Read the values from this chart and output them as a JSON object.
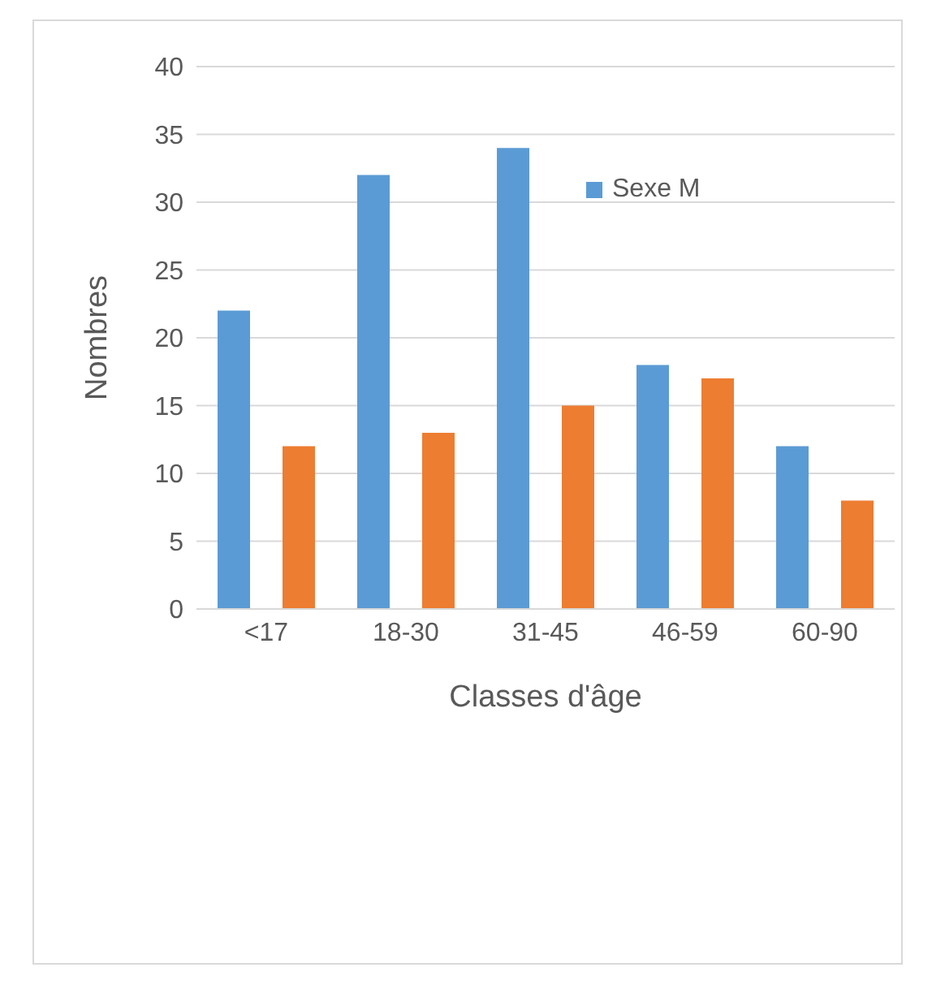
{
  "chart_data": {
    "type": "bar",
    "xlabel": "Classes d'âge",
    "ylabel": "Nombres",
    "categories": [
      "<17",
      "18-30",
      "31-45",
      "46-59",
      "60-90"
    ],
    "series": [
      {
        "name": "Sexe M",
        "color": "#5b9bd5",
        "values": [
          22,
          32,
          34,
          18,
          12
        ]
      },
      {
        "color": "#ed7d31",
        "values": [
          12,
          13,
          15,
          17,
          8
        ]
      }
    ],
    "ylim": [
      0,
      40
    ],
    "yticks": [
      0,
      5,
      10,
      15,
      20,
      25,
      30,
      35,
      40
    ],
    "grid": "y",
    "legend": "top right"
  }
}
